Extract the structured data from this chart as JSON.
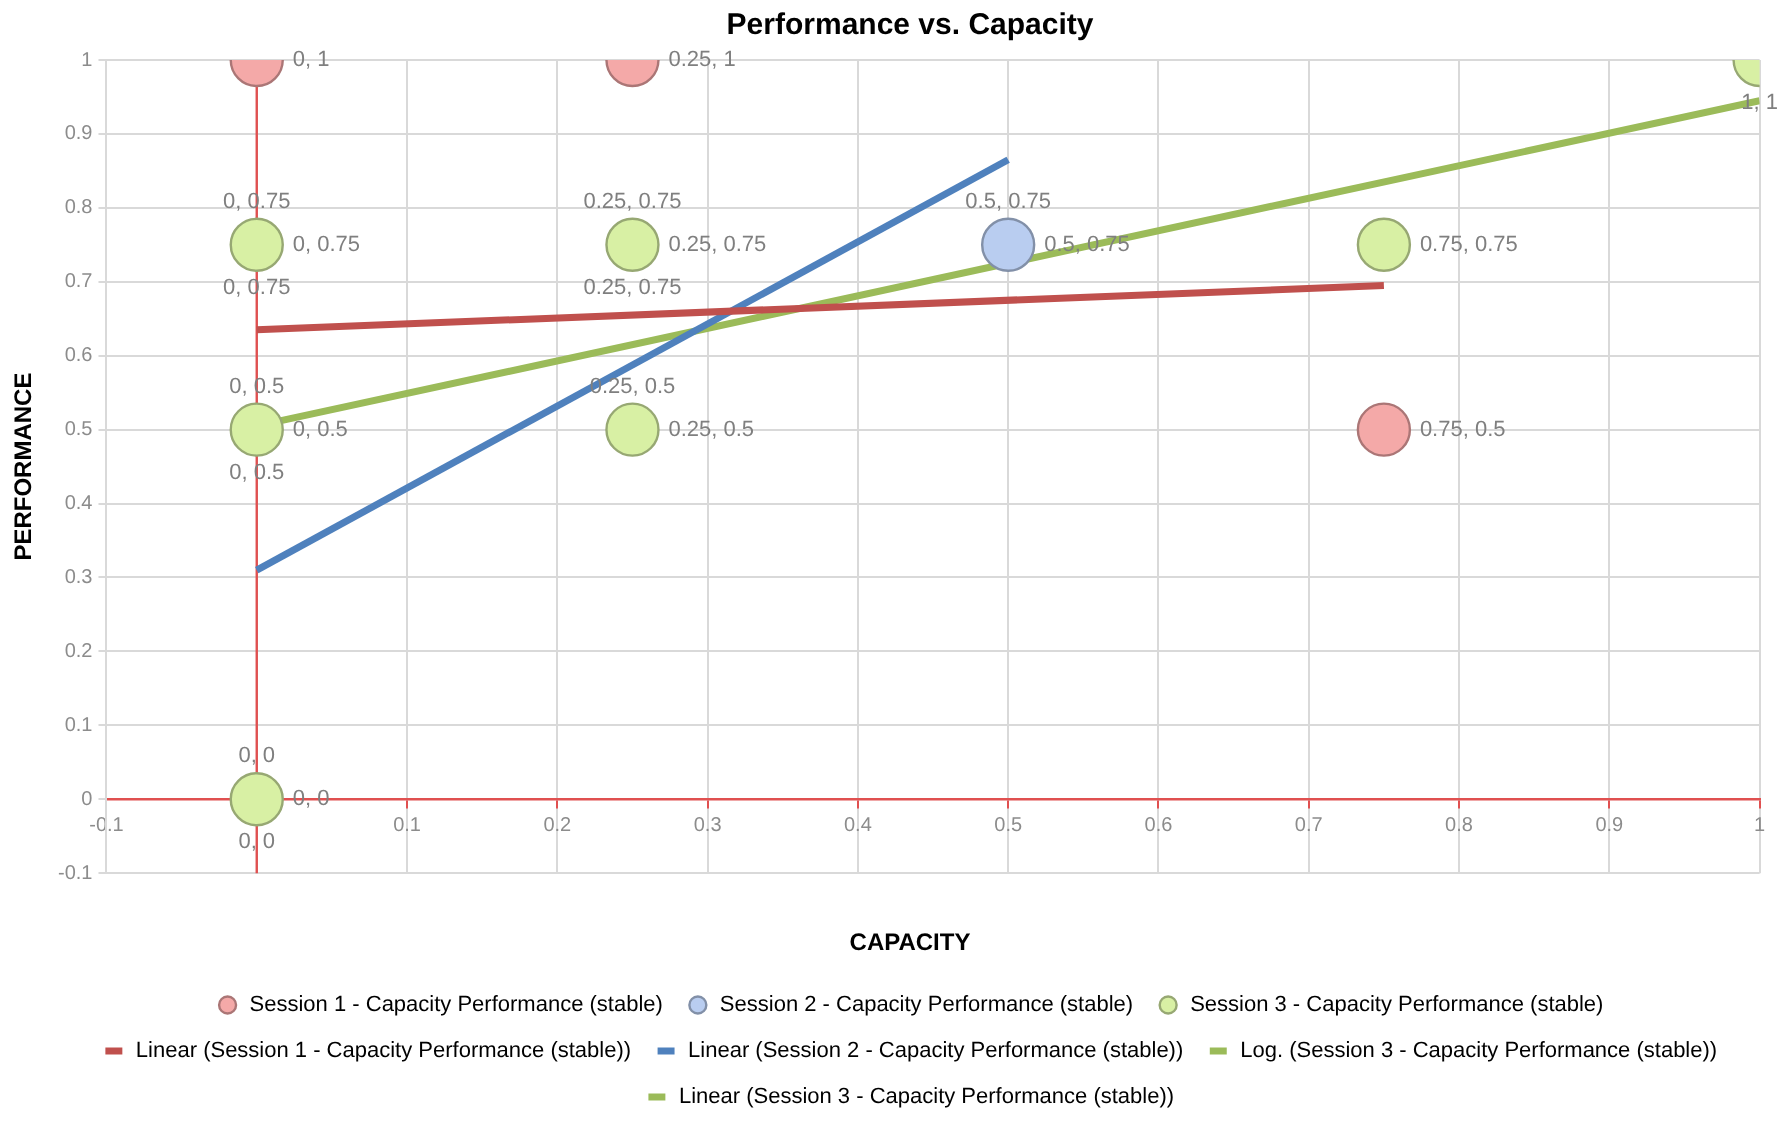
{
  "chart_data": {
    "type": "scatter",
    "title": "Performance vs. Capacity",
    "xlabel": "CAPACITY",
    "ylabel": "PERFORMANCE",
    "xlim": [
      -0.1,
      1
    ],
    "xticks": [
      -0.1,
      {
        "value": 0,
        "label": null
      },
      0.1,
      0.2,
      0.3,
      0.4,
      0.5,
      0.6,
      0.7,
      0.8,
      0.9,
      1
    ],
    "ylim": [
      -0.1,
      1
    ],
    "yticks": [
      -0.1,
      0,
      0.1,
      0.2,
      0.3,
      0.4,
      0.5,
      0.6,
      0.7,
      0.8,
      0.9,
      1
    ],
    "grid": true,
    "legend": "bottom",
    "marker": "circle",
    "series": [
      {
        "name": "Session 1 - Capacity Performance (stable)",
        "color": "#f4a9a8",
        "x": [
          0,
          0.25,
          0.75
        ],
        "values": [
          1,
          1,
          0.5
        ],
        "value_labels": [
          "0, 1",
          "0.25, 1",
          "0.75, 0.5"
        ]
      },
      {
        "name": "Session 2 - Capacity Performance (stable)",
        "color": "#b9cdf0",
        "x": [
          0.5
        ],
        "values": [
          0.75
        ],
        "value_labels": [
          "0.5, 0.75"
        ]
      },
      {
        "name": "Session 3 - Capacity Performance (stable)",
        "color": "#d8f0a4",
        "x": [
          0,
          0.25,
          0,
          0.25,
          0,
          0.75,
          1
        ],
        "values": [
          0.75,
          0.75,
          0.5,
          0.5,
          0,
          0.75,
          1
        ],
        "value_labels": [
          "0, 0.75",
          "0.25, 0.75",
          "0, 0.5",
          "0.25, 0.5",
          "0, 0",
          "0.75, 0.75",
          "1, 1"
        ]
      },
      {
        "name": "Linear (Session 1 - Capacity Performance (stable))",
        "type": "line",
        "marker": "none",
        "color": "#c0504d",
        "x": [
          0,
          0.75
        ],
        "values": [
          0.635,
          0.695
        ]
      },
      {
        "name": "Linear (Session 2 - Capacity Performance (stable))",
        "type": "line",
        "marker": "none",
        "color": "#4f81bd",
        "x": [
          0,
          0.5
        ],
        "values": [
          0.31,
          0.865
        ]
      },
      {
        "name": "Log. (Session 3 - Capacity Performance (stable))",
        "type": "line",
        "marker": "none",
        "color": "#9bbb59",
        "values": [
          null
        ]
      },
      {
        "name": "Linear (Session 3 - Capacity Performance (stable))",
        "type": "line",
        "marker": "none",
        "color": "#9bbb59",
        "x": [
          0,
          1
        ],
        "values": [
          0.505,
          0.945
        ]
      }
    ],
    "ref_lines": [
      {
        "axis": "x",
        "value": 0,
        "color": "#e05050"
      }
    ],
    "annotations": [
      {
        "text": "0, 0.75",
        "x": 0,
        "y": 0.75
      },
      {
        "text": "0, 0.75",
        "x": 0,
        "y": 0.75
      },
      {
        "text": "0.25, 0.75",
        "x": 0.25,
        "y": 0.75
      },
      {
        "text": "0.25, 0.75",
        "x": 0.25,
        "y": 0.75
      },
      {
        "text": "0, 0.5",
        "x": 0,
        "y": 0.5
      },
      {
        "text": "0, 0.5",
        "x": 0,
        "y": 0.5
      },
      {
        "text": "0.25, 0.5",
        "x": 0.25,
        "y": 0.5
      },
      {
        "text": "0, 0",
        "x": 0,
        "y": 0
      },
      {
        "text": "0, 0",
        "x": 0,
        "y": 0
      },
      {
        "text": "0.5, 0.75",
        "x": 0.5,
        "y": 0.75
      }
    ]
  }
}
